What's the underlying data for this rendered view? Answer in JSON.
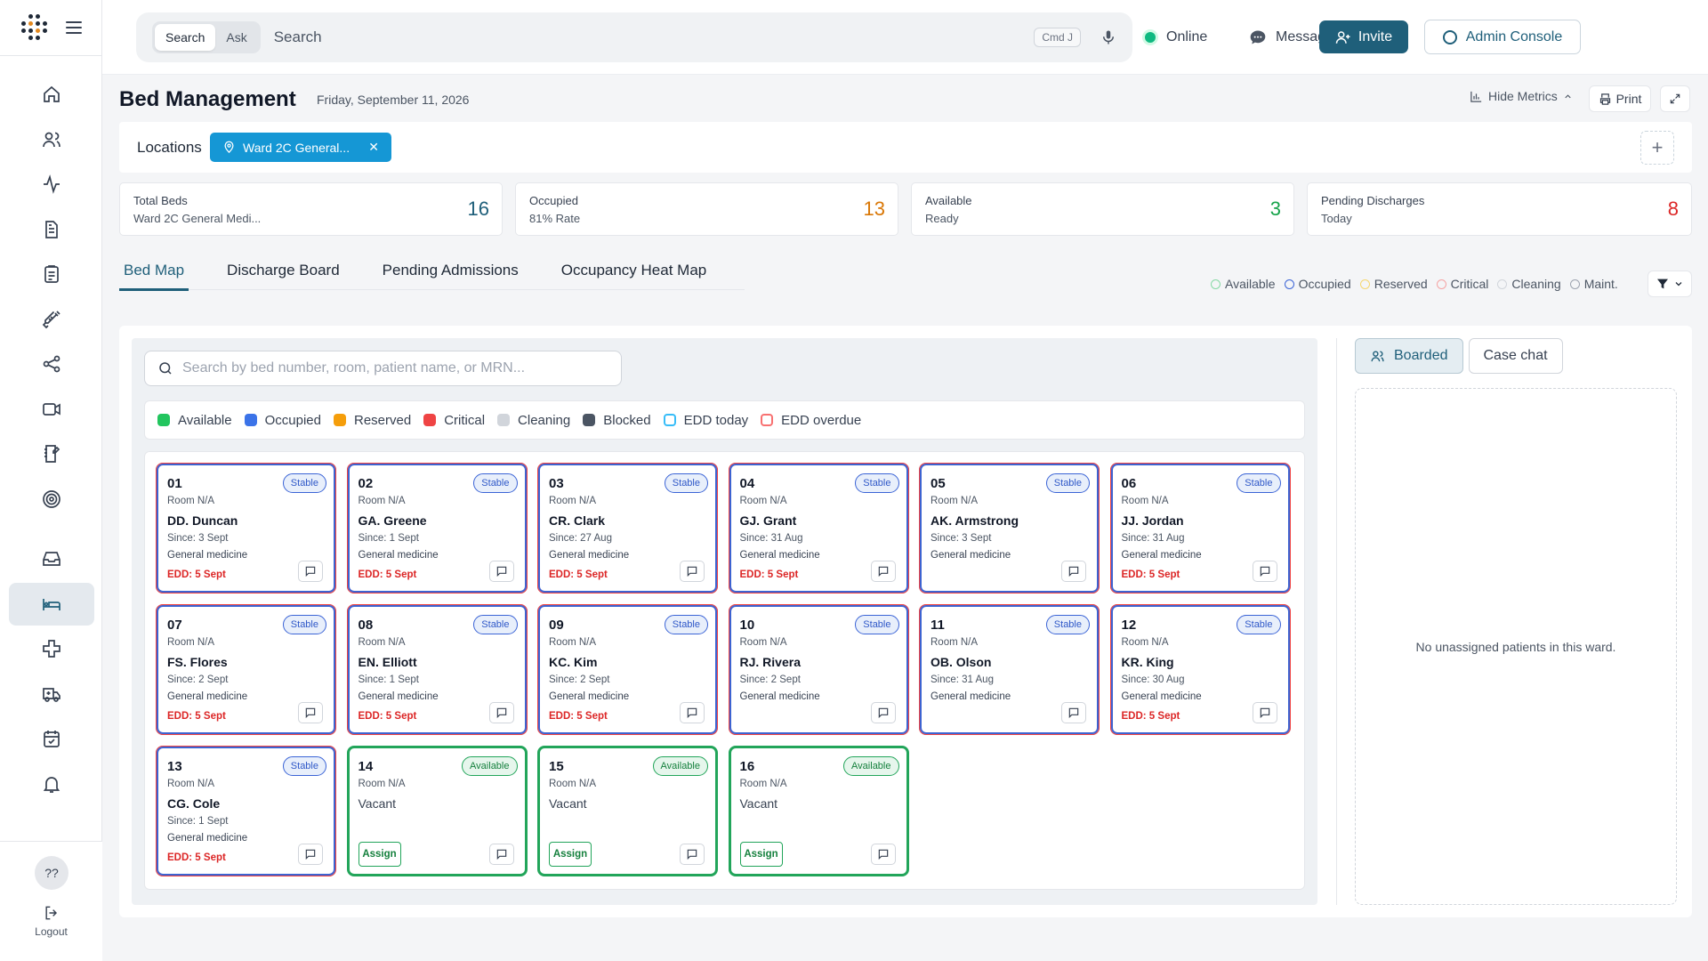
{
  "header": {
    "search_mode_search": "Search",
    "search_mode_ask": "Ask",
    "search_placeholder": "Search",
    "shortcut": "Cmd J",
    "status": "Online",
    "messages": "Messages",
    "invite": "Invite",
    "admin_console": "Admin Console"
  },
  "page": {
    "title": "Bed Management",
    "date": "Friday, September 11, 2026",
    "hide_metrics": "Hide Metrics",
    "print": "Print"
  },
  "locations": {
    "label": "Locations",
    "chip": "Ward 2C General..."
  },
  "stats": [
    {
      "label": "Total Beds",
      "sub": "Ward 2C General Medi...",
      "value": "16",
      "color": "#1f5f7a"
    },
    {
      "label": "Occupied",
      "sub": "81% Rate",
      "value": "13",
      "color": "#d97706"
    },
    {
      "label": "Available",
      "sub": "Ready",
      "value": "3",
      "color": "#16a34a"
    },
    {
      "label": "Pending Discharges",
      "sub": "Today",
      "value": "8",
      "color": "#dc2626"
    }
  ],
  "tabs": [
    "Bed Map",
    "Discharge Board",
    "Pending Admissions",
    "Occupancy Heat Map"
  ],
  "legend_top": [
    {
      "label": "Available",
      "color": "#86d9a5"
    },
    {
      "label": "Occupied",
      "color": "#3b64d6"
    },
    {
      "label": "Reserved",
      "color": "#f5d76e"
    },
    {
      "label": "Critical",
      "color": "#f5a3a3"
    },
    {
      "label": "Cleaning",
      "color": "#d1d5db"
    },
    {
      "label": "Maint.",
      "color": "#9ca3af"
    }
  ],
  "bed_search_placeholder": "Search by bed number, room, patient name, or MRN...",
  "legend": [
    {
      "label": "Available",
      "color": "#22c55e",
      "style": "fill"
    },
    {
      "label": "Occupied",
      "color": "#3b73e8",
      "style": "fill"
    },
    {
      "label": "Reserved",
      "color": "#f59e0b",
      "style": "fill"
    },
    {
      "label": "Critical",
      "color": "#ef4444",
      "style": "fill"
    },
    {
      "label": "Cleaning",
      "color": "#d1d5db",
      "style": "fill"
    },
    {
      "label": "Blocked",
      "color": "#4b5563",
      "style": "fill"
    },
    {
      "label": "EDD today",
      "color": "#38bdf8",
      "style": "outline"
    },
    {
      "label": "EDD overdue",
      "color": "#f87171",
      "style": "outline"
    }
  ],
  "beds": [
    {
      "num": "01",
      "status": "Stable",
      "room": "Room N/A",
      "name": "DD. Duncan",
      "since": "Since: 3 Sept",
      "svc": "General medicine",
      "edd": "EDD: 5 Sept"
    },
    {
      "num": "02",
      "status": "Stable",
      "room": "Room N/A",
      "name": "GA. Greene",
      "since": "Since: 1 Sept",
      "svc": "General medicine",
      "edd": "EDD: 5 Sept"
    },
    {
      "num": "03",
      "status": "Stable",
      "room": "Room N/A",
      "name": "CR. Clark",
      "since": "Since: 27 Aug",
      "svc": "General medicine",
      "edd": "EDD: 5 Sept"
    },
    {
      "num": "04",
      "status": "Stable",
      "room": "Room N/A",
      "name": "GJ. Grant",
      "since": "Since: 31 Aug",
      "svc": "General medicine",
      "edd": "EDD: 5 Sept"
    },
    {
      "num": "05",
      "status": "Stable",
      "room": "Room N/A",
      "name": "AK. Armstrong",
      "since": "Since: 3 Sept",
      "svc": "General medicine",
      "edd": ""
    },
    {
      "num": "06",
      "status": "Stable",
      "room": "Room N/A",
      "name": "JJ. Jordan",
      "since": "Since: 31 Aug",
      "svc": "General medicine",
      "edd": "EDD: 5 Sept"
    },
    {
      "num": "07",
      "status": "Stable",
      "room": "Room N/A",
      "name": "FS. Flores",
      "since": "Since: 2 Sept",
      "svc": "General medicine",
      "edd": "EDD: 5 Sept"
    },
    {
      "num": "08",
      "status": "Stable",
      "room": "Room N/A",
      "name": "EN. Elliott",
      "since": "Since: 1 Sept",
      "svc": "General medicine",
      "edd": "EDD: 5 Sept"
    },
    {
      "num": "09",
      "status": "Stable",
      "room": "Room N/A",
      "name": "KC. Kim",
      "since": "Since: 2 Sept",
      "svc": "General medicine",
      "edd": "EDD: 5 Sept"
    },
    {
      "num": "10",
      "status": "Stable",
      "room": "Room N/A",
      "name": "RJ. Rivera",
      "since": "Since: 2 Sept",
      "svc": "General medicine",
      "edd": ""
    },
    {
      "num": "11",
      "status": "Stable",
      "room": "Room N/A",
      "name": "OB. Olson",
      "since": "Since: 31 Aug",
      "svc": "General medicine",
      "edd": ""
    },
    {
      "num": "12",
      "status": "Stable",
      "room": "Room N/A",
      "name": "KR. King",
      "since": "Since: 30 Aug",
      "svc": "General medicine",
      "edd": "EDD: 5 Sept"
    },
    {
      "num": "13",
      "status": "Stable",
      "room": "Room N/A",
      "name": "CG. Cole",
      "since": "Since: 1 Sept",
      "svc": "General medicine",
      "edd": "EDD: 5 Sept"
    },
    {
      "num": "14",
      "status": "Available",
      "room": "Room N/A",
      "vacant": "Vacant",
      "assign": "Assign"
    },
    {
      "num": "15",
      "status": "Available",
      "room": "Room N/A",
      "vacant": "Vacant",
      "assign": "Assign"
    },
    {
      "num": "16",
      "status": "Available",
      "room": "Room N/A",
      "vacant": "Vacant",
      "assign": "Assign"
    }
  ],
  "right_panel": {
    "tab_boarded": "Boarded",
    "tab_case_chat": "Case chat",
    "empty": "No unassigned patients in this ward."
  },
  "sidebar": {
    "help": "??",
    "logout": "Logout"
  }
}
